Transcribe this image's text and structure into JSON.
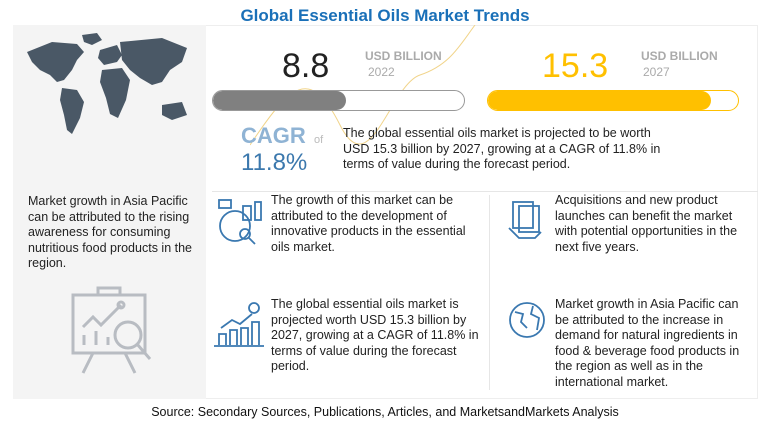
{
  "title": "Global Essential Oils Market Trends",
  "market_2022": {
    "value": "8.8",
    "unit": "USD BILLION",
    "year": "2022",
    "bar_fill_pct": 53,
    "color": "#808080"
  },
  "market_2027": {
    "value": "15.3",
    "unit": "USD BILLION",
    "year": "2027",
    "bar_fill_pct": 89,
    "color": "#ffc000"
  },
  "cagr": {
    "label": "CAGR",
    "of": "of",
    "value": "11.8%"
  },
  "summary": "The global essential oils market is projected to be worth USD 15.3 billion by 2027, growing at a CAGR of 11.8% in terms of value during the forecast period.",
  "left_text": "Market growth in Asia Pacific can be attributed to the rising awareness for consuming nutritious food products in the region.",
  "cells": [
    {
      "icon": "analytics-icon",
      "text": "The growth of this market can be attributed to the development of innovative products in the essential oils market."
    },
    {
      "icon": "money-hand-icon",
      "text": "Acquisitions and new product launches can benefit the market with potential opportunities in the next five years."
    },
    {
      "icon": "growth-chart-dollar-icon",
      "text": "The global essential oils market is projected worth USD 15.3 billion by 2027, growing at a CAGR of 11.8% in terms of value during the forecast period."
    },
    {
      "icon": "globe-icon",
      "text": "Market growth in Asia Pacific can be attributed to the increase in demand for natural ingredients in food & beverage food products in the region as well as in the international market."
    }
  ],
  "source": "Source: Secondary Sources, Publications, Articles, and MarketsandMarkets Analysis"
}
